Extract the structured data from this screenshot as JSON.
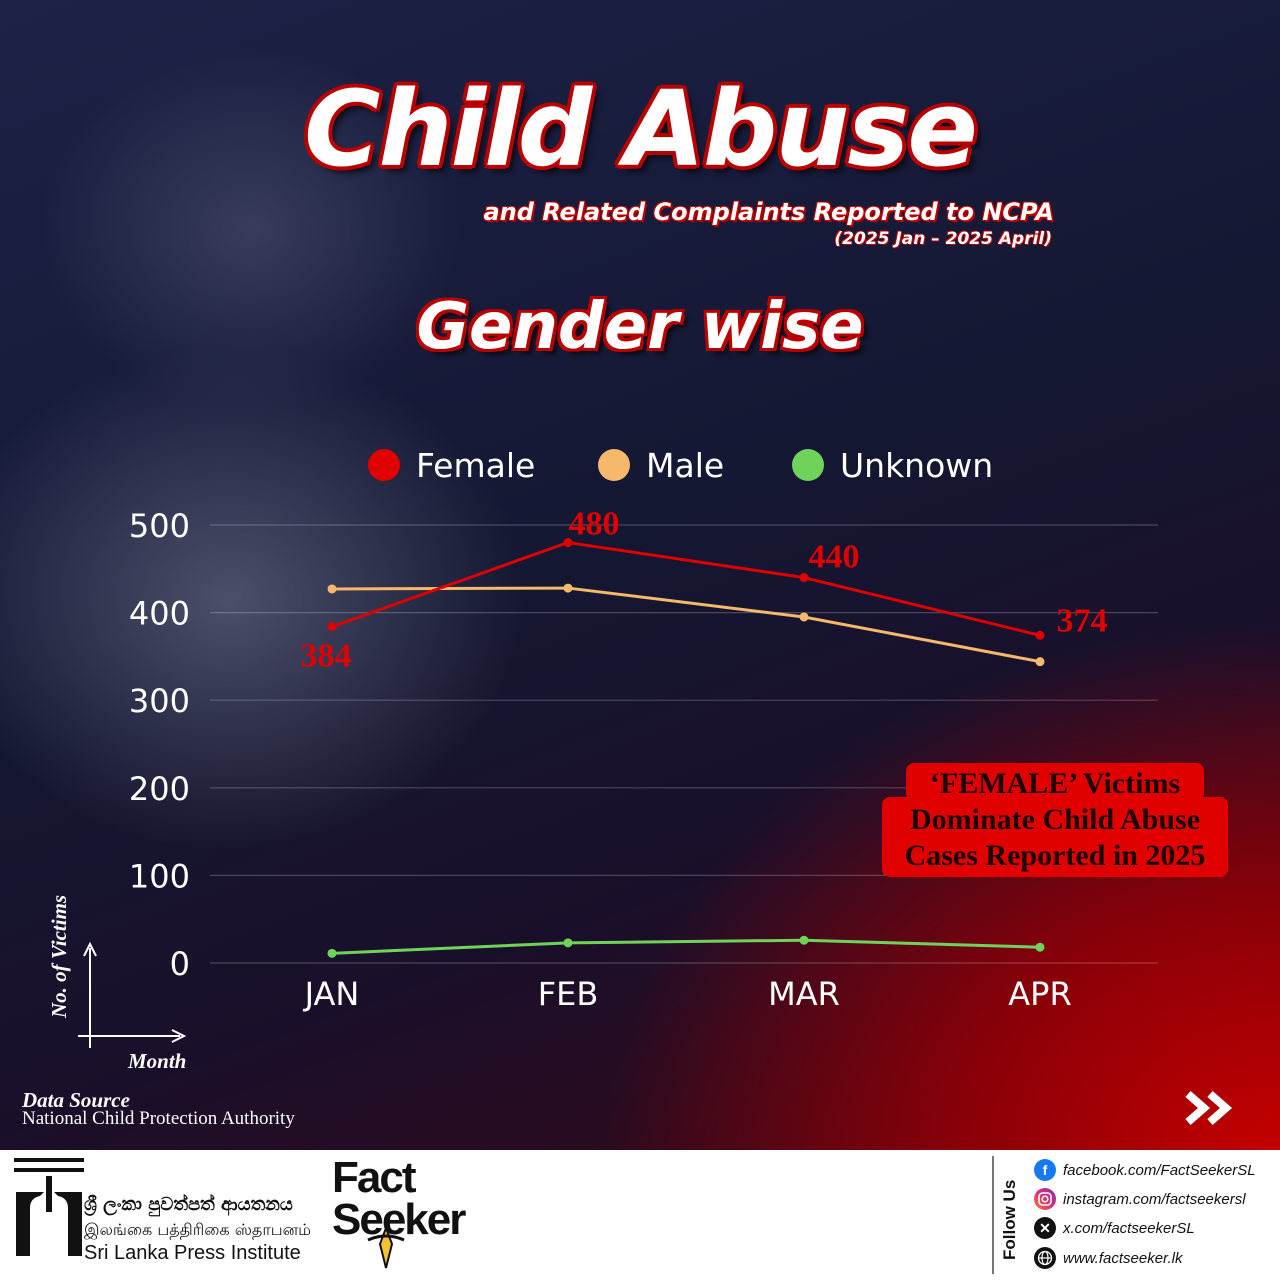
{
  "header": {
    "title": "Child Abuse",
    "subtitle": "and Related Complaints Reported to NCPA",
    "period": "(2025 Jan – 2025 April)",
    "section_title": "Gender wise"
  },
  "axis_guide": {
    "y_label": "No. of Victims",
    "x_label": "Month"
  },
  "callout": {
    "lines": [
      "‘FEMALE’ Victims",
      "Dominate Child Abuse",
      "Cases Reported in 2025"
    ],
    "color": "#e00000"
  },
  "source": {
    "label": "Data Source",
    "name": "National Child Protection Authority"
  },
  "navigation": {
    "next_icon": "double-chevron-right-icon"
  },
  "footer": {
    "slpi": {
      "sinhala": "ශ්‍රී ලංකා පුවත්පත් ආයතනය",
      "tamil": "இலங்கை பத்திரிகை ஸ்தாபனம்",
      "english": "Sri Lanka Press Institute"
    },
    "factseeker": {
      "line1": "Fact",
      "line2": "Seeker"
    },
    "follow_us": "Follow Us",
    "social": [
      {
        "icon": "facebook-icon",
        "text": "facebook.com/FactSeekerSL",
        "color": "#1877f2"
      },
      {
        "icon": "instagram-icon",
        "text": "instagram.com/factseekersl",
        "color": "#d62976"
      },
      {
        "icon": "x-icon",
        "text": "x.com/factseekerSL",
        "color": "#111111"
      },
      {
        "icon": "globe-icon",
        "text": "www.factseeker.lk",
        "color": "#111111"
      }
    ]
  },
  "chart_data": {
    "type": "line",
    "categories": [
      "JAN",
      "FEB",
      "MAR",
      "APR"
    ],
    "series": [
      {
        "name": "Female",
        "color": "#e00000",
        "values": [
          384,
          480,
          440,
          374
        ],
        "labels": [
          "384",
          "480",
          "440",
          "374"
        ]
      },
      {
        "name": "Male",
        "color": "#f6b86a",
        "values": [
          427,
          428,
          395,
          344
        ]
      },
      {
        "name": "Unknown",
        "color": "#6fd35a",
        "values": [
          11,
          23,
          26,
          18
        ]
      }
    ],
    "ylim": [
      0,
      500
    ],
    "yticks": [
      "0",
      "100",
      "200",
      "300",
      "400",
      "500"
    ],
    "grid": true,
    "legend": "top"
  }
}
